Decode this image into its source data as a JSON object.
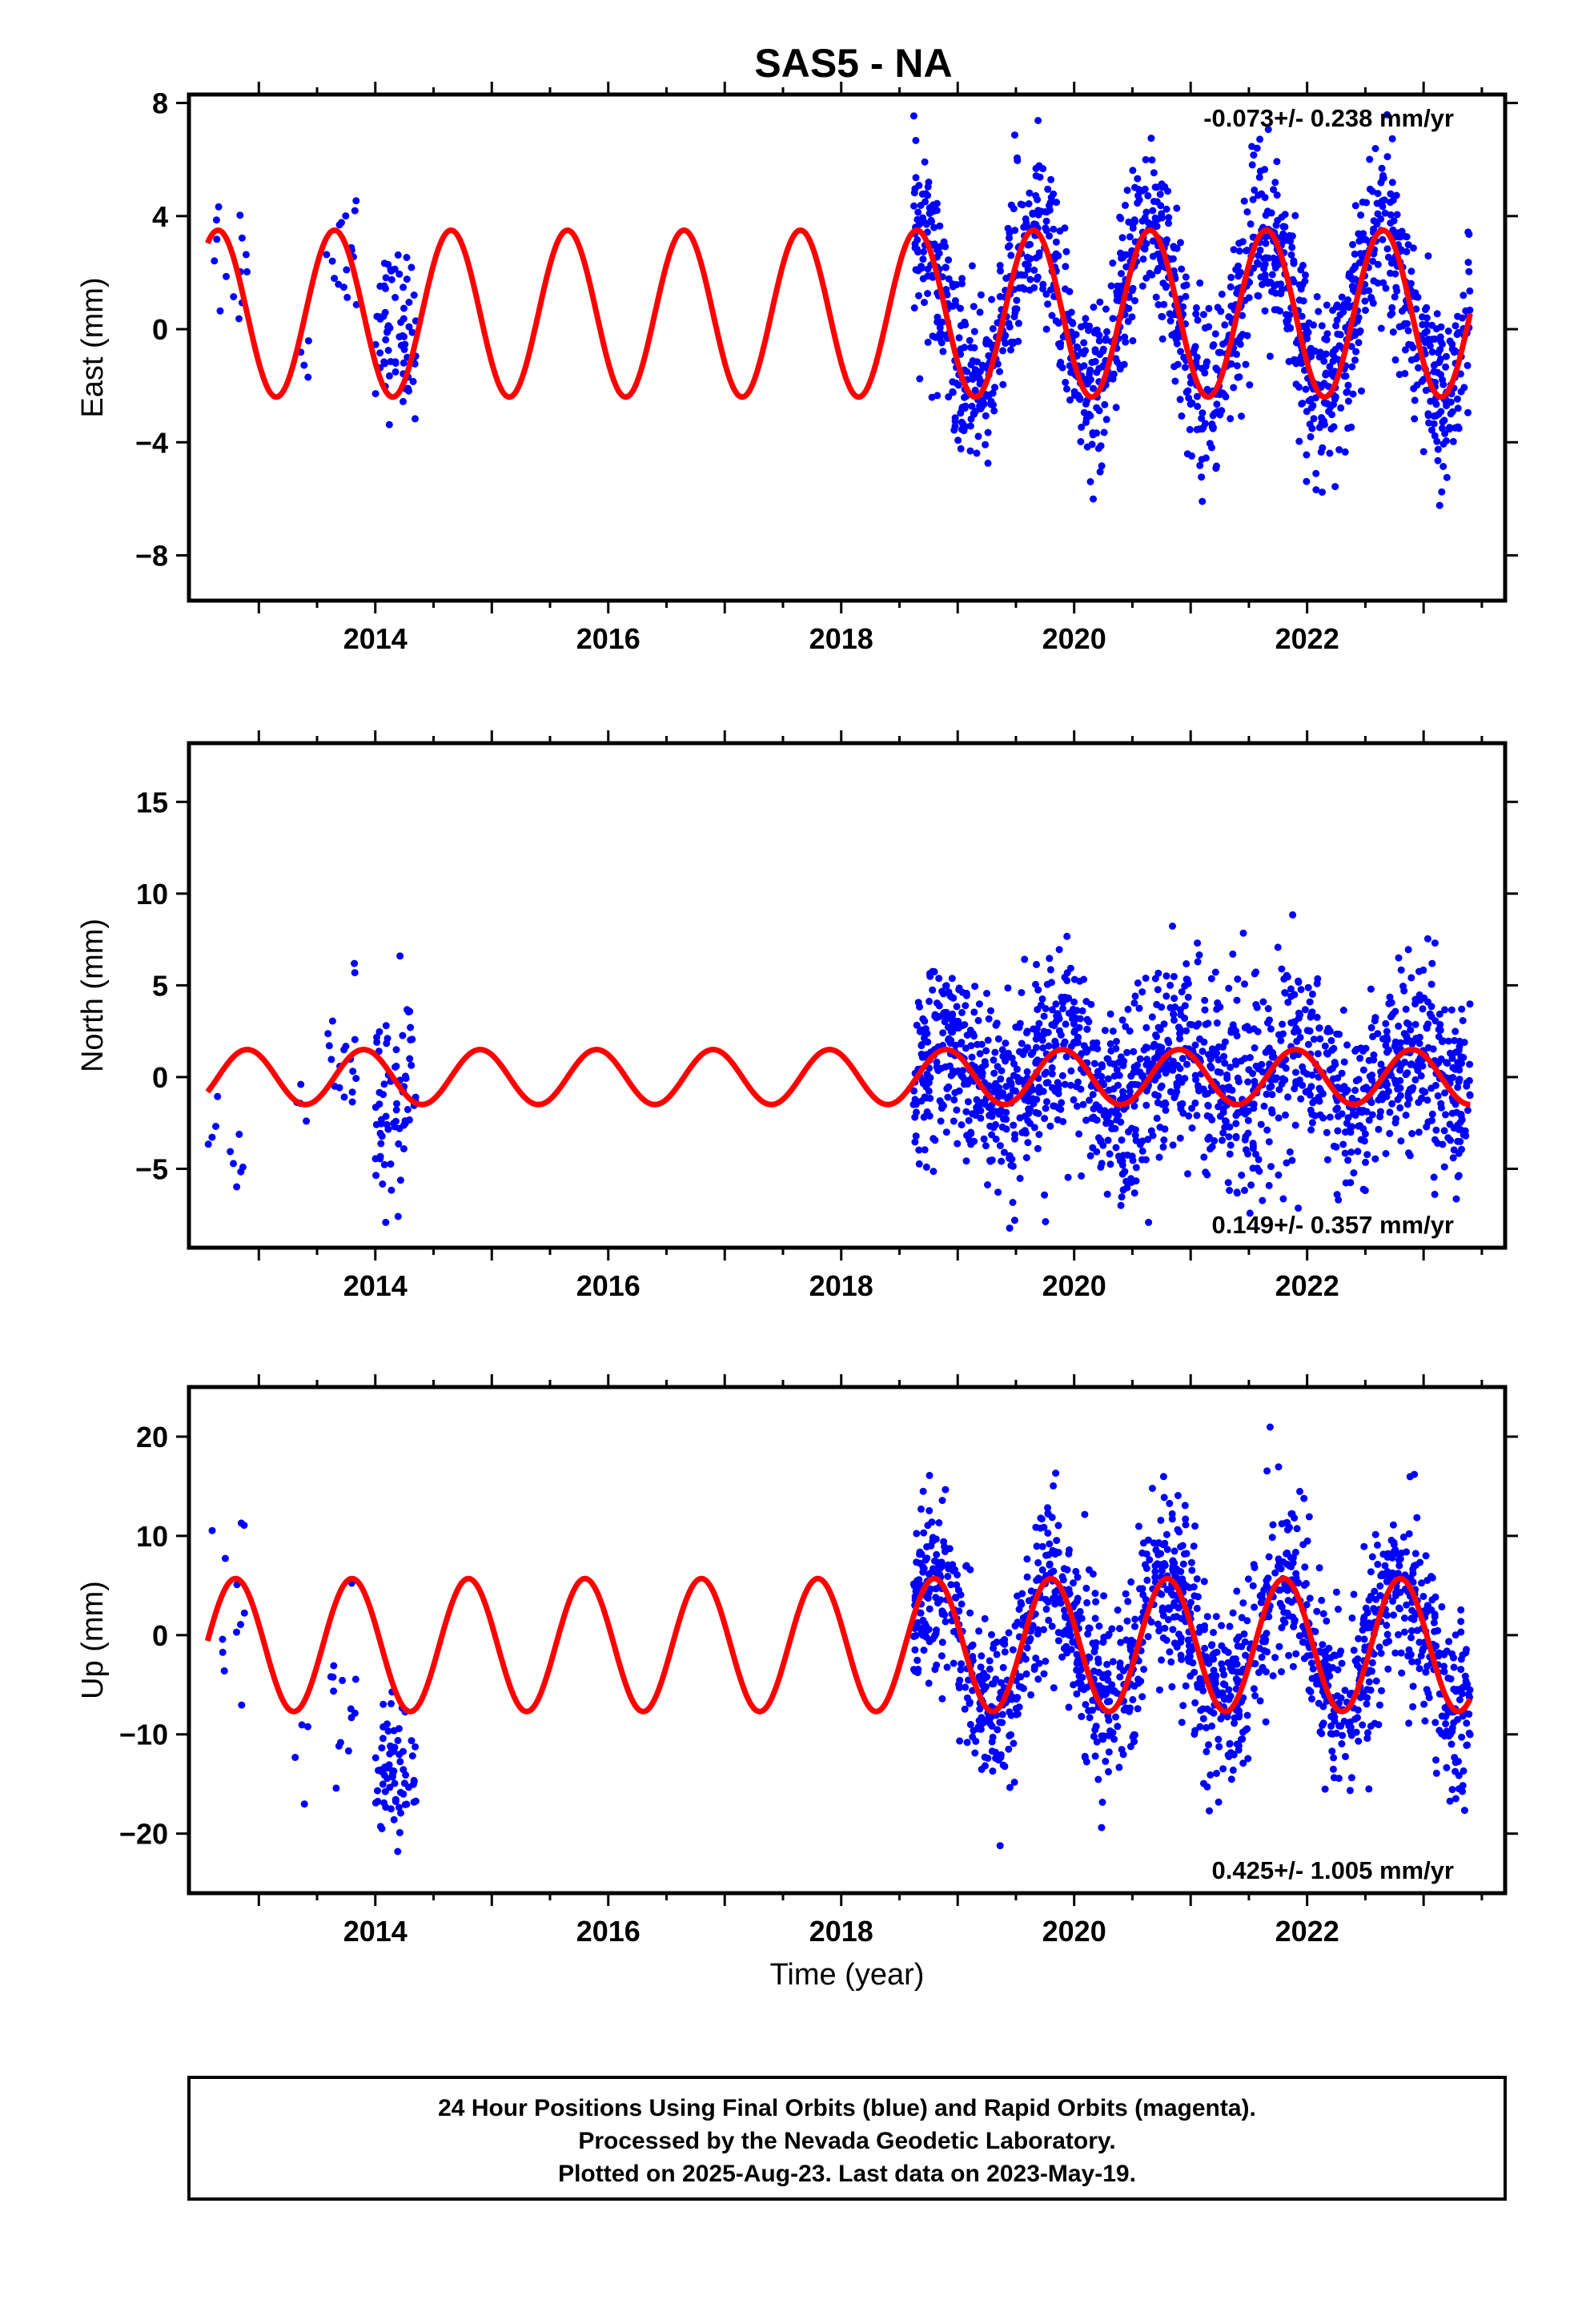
{
  "title": "SAS5 - NA",
  "colors": {
    "data": "#0000ff",
    "model": "#ff0000",
    "frame": "#000000"
  },
  "caption": {
    "line1": "24 Hour Positions Using Final Orbits (blue) and Rapid Orbits (magenta).",
    "line2": "Processed by the Nevada Geodetic Laboratory.",
    "line3": "Plotted on 2025-Aug-23. Last data on 2023-May-19."
  },
  "chart_data": [
    {
      "type": "scatter",
      "panel": "east",
      "ylabel": "East (mm)",
      "xlabel": "",
      "xlim": [
        2012.4,
        2023.7
      ],
      "ylim": [
        -9.6,
        8.3
      ],
      "xticks": [
        "2014",
        "2016",
        "2018",
        "2020",
        "2022"
      ],
      "yticks": [
        "8",
        "4",
        "0",
        "−4",
        "−8"
      ],
      "yticks_values": [
        8,
        4,
        0,
        -4,
        -8
      ],
      "rate_text": "-0.073+/- 0.238 mm/yr",
      "rate_position": "top-right",
      "grid": false,
      "model": {
        "mean": 0.55,
        "amp": 2.95,
        "phase_year": 2012.65
      },
      "data_segments": [
        {
          "start": 2012.56,
          "end": 2012.9,
          "n": 14,
          "center": 2.6,
          "spread": 1.4
        },
        {
          "start": 2013.3,
          "end": 2013.45,
          "n": 4,
          "center": -0.8,
          "spread": 0.6
        },
        {
          "start": 2013.58,
          "end": 2013.85,
          "n": 16,
          "center": 3.0,
          "spread": 1.2
        },
        {
          "start": 2014.0,
          "end": 2014.35,
          "n": 70,
          "center": 0.0,
          "spread": 1.4
        },
        {
          "start": 2018.62,
          "end": 2023.4,
          "n": 1500,
          "center": 0.0,
          "spread": 1.5
        }
      ]
    },
    {
      "type": "scatter",
      "panel": "north",
      "ylabel": "North (mm)",
      "xlabel": "",
      "xlim": [
        2012.4,
        2023.7
      ],
      "ylim": [
        -9.3,
        18.2
      ],
      "xticks": [
        "2014",
        "2016",
        "2018",
        "2020",
        "2022"
      ],
      "yticks": [
        "15",
        "10",
        "5",
        "0",
        "−5"
      ],
      "yticks_values": [
        15,
        10,
        5,
        0,
        -5
      ],
      "rate_text": "0.149+/- 0.357 mm/yr",
      "rate_position": "bottom-right",
      "grid": false,
      "model": {
        "mean": 0.0,
        "amp": 1.5,
        "phase_year": 2012.9
      },
      "data_segments": [
        {
          "start": 2012.56,
          "end": 2012.9,
          "n": 10,
          "center": -3.0,
          "spread": 1.4
        },
        {
          "start": 2013.3,
          "end": 2013.45,
          "n": 4,
          "center": -1.0,
          "spread": 0.6
        },
        {
          "start": 2013.58,
          "end": 2013.85,
          "n": 18,
          "center": 1.0,
          "spread": 2.0
        },
        {
          "start": 2014.0,
          "end": 2014.35,
          "n": 70,
          "center": -1.0,
          "spread": 2.8
        },
        {
          "start": 2018.62,
          "end": 2023.4,
          "n": 1500,
          "center": 0.0,
          "spread": 2.6
        }
      ]
    },
    {
      "type": "scatter",
      "panel": "up",
      "ylabel": "Up (mm)",
      "xlabel": "Time (year)",
      "xlim": [
        2012.4,
        2023.7
      ],
      "ylim": [
        -26.0,
        25.0
      ],
      "xticks": [
        "2014",
        "2016",
        "2018",
        "2020",
        "2022"
      ],
      "yticks": [
        "20",
        "10",
        "0",
        "−10",
        "−20"
      ],
      "yticks_values": [
        20,
        10,
        0,
        -10,
        -20
      ],
      "rate_text": "0.425+/- 1.005 mm/yr",
      "rate_position": "bottom-right",
      "grid": false,
      "model": {
        "mean": -1.0,
        "amp": 6.7,
        "phase_year": 2012.8
      },
      "data_segments": [
        {
          "start": 2012.56,
          "end": 2012.9,
          "n": 12,
          "center": 2.0,
          "spread": 5.0
        },
        {
          "start": 2013.3,
          "end": 2013.45,
          "n": 4,
          "center": -12.0,
          "spread": 6.0
        },
        {
          "start": 2013.58,
          "end": 2013.85,
          "n": 14,
          "center": -6.0,
          "spread": 5.0
        },
        {
          "start": 2014.0,
          "end": 2014.35,
          "n": 70,
          "center": -14.0,
          "spread": 4.0
        },
        {
          "start": 2018.62,
          "end": 2023.4,
          "n": 1500,
          "center": 0.0,
          "spread": 4.5
        }
      ]
    }
  ]
}
